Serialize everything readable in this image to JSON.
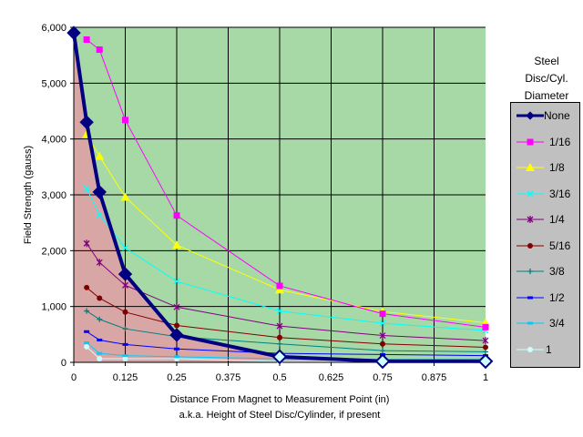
{
  "chart_data": {
    "type": "line",
    "title": "",
    "xlabel": "Distance From Magnet to Measurement Point (in)",
    "xlabel2": "a.k.a. Height of Steel Disc/Cylinder, if present",
    "ylabel": "Field Strength (gauss)",
    "xlim": [
      0,
      1
    ],
    "ylim": [
      0,
      6000
    ],
    "xticks": [
      "0",
      "0.125",
      "0.25",
      "0.375",
      "0.5",
      "0.625",
      "0.75",
      "0.875",
      "1"
    ],
    "xtick_values": [
      0,
      0.125,
      0.25,
      0.375,
      0.5,
      0.625,
      0.75,
      0.875,
      1
    ],
    "yticks": [
      "0",
      "1,000",
      "2,000",
      "3,000",
      "4,000",
      "5,000",
      "6,000"
    ],
    "ytick_values": [
      0,
      1000,
      2000,
      3000,
      4000,
      5000,
      6000
    ],
    "grid": true,
    "legend_title": [
      "Steel",
      "Disc/Cyl.",
      "Diameter"
    ],
    "legend_position": "right",
    "colors": {
      "above_area": "#a6d9a6",
      "below_area": "#d9a6a6"
    },
    "series": [
      {
        "name": "None",
        "color": "#000080",
        "marker": "diamond-big",
        "x": [
          0,
          0.03125,
          0.0625,
          0.125,
          0.25,
          0.5,
          0.75,
          1
        ],
        "values": [
          5900,
          4300,
          3050,
          1580,
          490,
          100,
          20,
          20
        ]
      },
      {
        "name": "1/16",
        "color": "#ff00ff",
        "marker": "square",
        "x": [
          0.03125,
          0.0625,
          0.125,
          0.25,
          0.5,
          0.75,
          1
        ],
        "values": [
          5780,
          5600,
          4340,
          2630,
          1370,
          870,
          630
        ]
      },
      {
        "name": "1/8",
        "color": "#ffff00",
        "marker": "triangle",
        "x": [
          0.03125,
          0.0625,
          0.125,
          0.25,
          0.5,
          0.75,
          1
        ],
        "values": [
          4080,
          3690,
          2960,
          2100,
          1300,
          910,
          710
        ]
      },
      {
        "name": "3/16",
        "color": "#00ffff",
        "marker": "x",
        "x": [
          0.03125,
          0.0625,
          0.125,
          0.25,
          0.5,
          0.75,
          1
        ],
        "values": [
          3110,
          2640,
          2050,
          1450,
          920,
          700,
          570
        ]
      },
      {
        "name": "1/4",
        "color": "#800080",
        "marker": "star",
        "x": [
          0.03125,
          0.0625,
          0.125,
          0.25,
          0.5,
          0.75,
          1
        ],
        "values": [
          2130,
          1790,
          1380,
          990,
          650,
          480,
          390
        ]
      },
      {
        "name": "5/16",
        "color": "#800000",
        "marker": "circle",
        "x": [
          0.03125,
          0.0625,
          0.125,
          0.25,
          0.5,
          0.75,
          1
        ],
        "values": [
          1340,
          1150,
          900,
          660,
          445,
          330,
          270
        ]
      },
      {
        "name": "3/8",
        "color": "#008080",
        "marker": "plus",
        "x": [
          0.03125,
          0.0625,
          0.125,
          0.25,
          0.5,
          0.75,
          1
        ],
        "values": [
          920,
          770,
          600,
          460,
          330,
          210,
          190
        ]
      },
      {
        "name": "1/2",
        "color": "#0000ff",
        "marker": "dash",
        "x": [
          0.03125,
          0.0625,
          0.125,
          0.25,
          0.5,
          0.75,
          1
        ],
        "values": [
          550,
          400,
          320,
          240,
          160,
          140,
          120
        ]
      },
      {
        "name": "3/4",
        "color": "#00ccff",
        "marker": "dash",
        "x": [
          0.03125,
          0.0625,
          0.125,
          0.25,
          0.5,
          0.75,
          1
        ],
        "values": [
          350,
          160,
          120,
          100,
          65,
          50,
          50
        ]
      },
      {
        "name": "1",
        "color": "#ccffff",
        "marker": "circle",
        "x": [
          0.03125,
          0.0625,
          0.125,
          0.25,
          0.5,
          0.75,
          1
        ],
        "values": [
          280,
          65,
          65,
          65,
          16,
          16,
          16
        ]
      }
    ]
  }
}
